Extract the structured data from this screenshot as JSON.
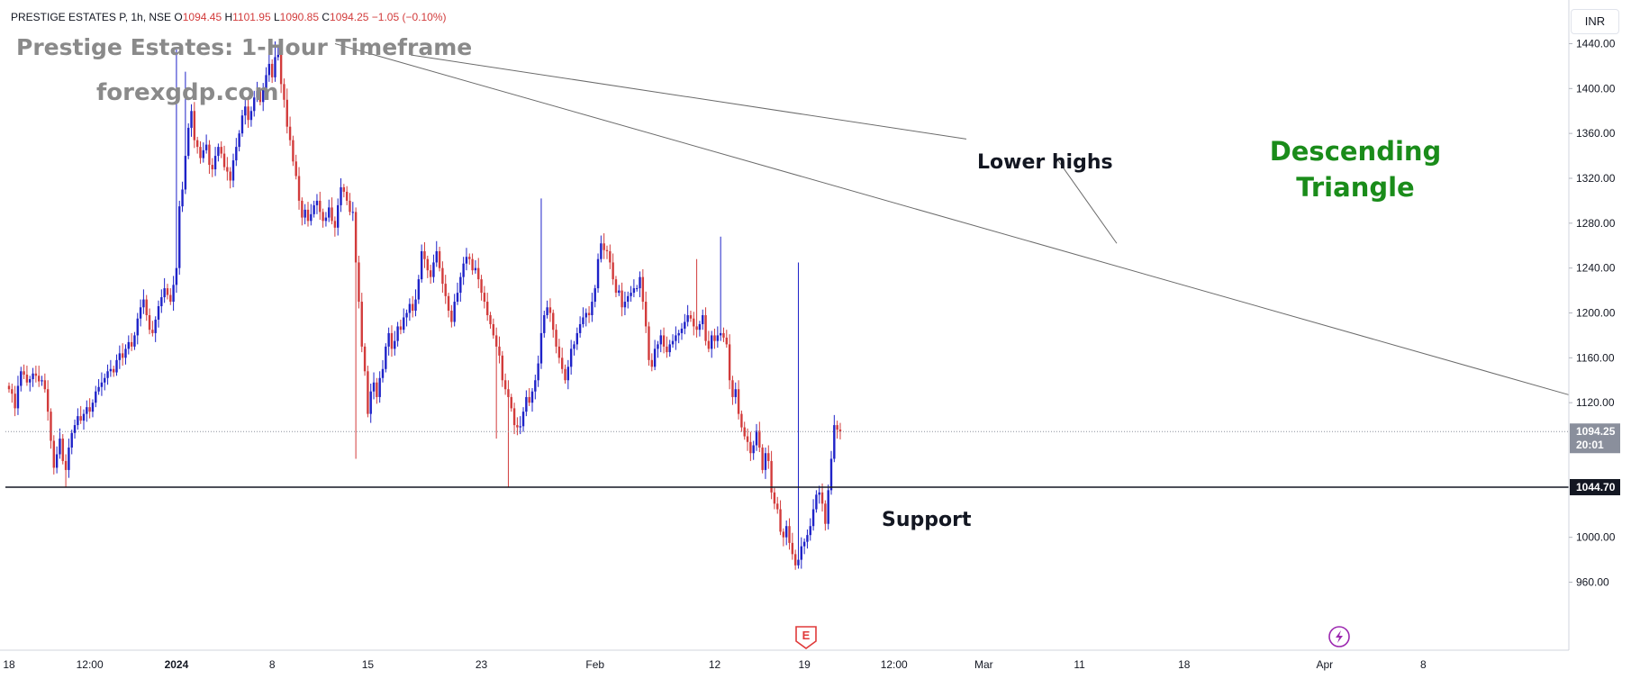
{
  "header": {
    "symbol": "PRESTIGE ESTATES P, 1h, NSE",
    "ohlc": [
      {
        "label": "O",
        "value": "1094.45"
      },
      {
        "label": "H",
        "value": "1101.95"
      },
      {
        "label": "L",
        "value": "1090.85"
      },
      {
        "label": "C",
        "value": "1094.25"
      }
    ],
    "change": "−1.05 (−0.10%)"
  },
  "title": "Prestige Estates: 1-Hour Timeframe",
  "watermark": "forexgdp.com",
  "annotations": {
    "pattern": "Descending Triangle",
    "lower_highs": "Lower highs",
    "support": "Support"
  },
  "price_scale": {
    "currency": "INR",
    "last_price": "1094.25",
    "countdown": "20:01",
    "support_label": "1044.70"
  },
  "colors": {
    "up": "#1e22c8",
    "down": "#d23b3b",
    "pattern_text": "#1a8c1a",
    "trendline": "#6b6b6b",
    "support_line": "#131722"
  },
  "chart_data": {
    "type": "line",
    "title": "Prestige Estates: 1-Hour Timeframe",
    "xlabel": "",
    "ylabel": "",
    "ylim": [
      940,
      1460
    ],
    "y_ticks": [
      960,
      1000,
      1040,
      1080,
      1120,
      1160,
      1200,
      1240,
      1280,
      1320,
      1360,
      1400,
      1440
    ],
    "y_tick_labels": [
      "960.00",
      "1000.00",
      "1120.00",
      "1160.00",
      "1200.00",
      "1240.00",
      "1280.00",
      "1320.00",
      "1360.00",
      "1400.00",
      "1440.00"
    ],
    "x_tick_labels": [
      "18",
      "12:00",
      "2024",
      "8",
      "15",
      "23",
      "Feb",
      "12",
      "19",
      "12:00",
      "Mar",
      "11",
      "18",
      "Apr",
      "8"
    ],
    "x_tick_index": [
      0,
      27,
      56,
      88,
      120,
      158,
      196,
      236,
      266,
      296,
      326,
      358,
      393,
      440,
      473
    ],
    "grid": false,
    "support_level": 1044.7,
    "last_price": 1094.25,
    "series": [
      {
        "values": [
          1132,
          1128,
          1115,
          1135,
          1148,
          1145,
          1138,
          1141,
          1146,
          1144,
          1139,
          1140,
          1132,
          1112,
          1086,
          1062,
          1074,
          1088,
          1068,
          1060,
          1080,
          1093,
          1100,
          1108,
          1104,
          1110,
          1116,
          1112,
          1120,
          1130,
          1134,
          1138,
          1142,
          1148,
          1150,
          1147,
          1158,
          1164,
          1160,
          1168,
          1174,
          1170,
          1180,
          1195,
          1205,
          1212,
          1198,
          1185,
          1182,
          1194,
          1206,
          1214,
          1222,
          1216,
          1210,
          1225,
          1240,
          1295,
          1310,
          1340,
          1365,
          1380,
          1354,
          1348,
          1338,
          1345,
          1350,
          1332,
          1328,
          1340,
          1348,
          1342,
          1330,
          1326,
          1318,
          1336,
          1348,
          1360,
          1376,
          1384,
          1372,
          1380,
          1392,
          1398,
          1388,
          1400,
          1412,
          1422,
          1410,
          1428,
          1430,
          1404,
          1390,
          1366,
          1354,
          1335,
          1322,
          1300,
          1285,
          1292,
          1282,
          1288,
          1296,
          1300,
          1290,
          1282,
          1285,
          1294,
          1282,
          1276,
          1296,
          1312,
          1308,
          1300,
          1290,
          1290,
          1245,
          1210,
          1170,
          1148,
          1110,
          1130,
          1138,
          1125,
          1142,
          1150,
          1170,
          1182,
          1168,
          1175,
          1188,
          1185,
          1196,
          1200,
          1208,
          1202,
          1212,
          1230,
          1255,
          1248,
          1238,
          1232,
          1245,
          1255,
          1240,
          1226,
          1215,
          1202,
          1192,
          1210,
          1218,
          1232,
          1244,
          1250,
          1248,
          1238,
          1240,
          1230,
          1218,
          1210,
          1198,
          1190,
          1180,
          1170,
          1162,
          1140,
          1132,
          1125,
          1115,
          1100,
          1098,
          1099,
          1112,
          1125,
          1120,
          1130,
          1140,
          1155,
          1182,
          1198,
          1205,
          1200,
          1185,
          1170,
          1160,
          1150,
          1140,
          1152,
          1168,
          1172,
          1182,
          1190,
          1196,
          1200,
          1198,
          1210,
          1222,
          1248,
          1262,
          1256,
          1255,
          1245,
          1230,
          1218,
          1220,
          1205,
          1210,
          1215,
          1218,
          1222,
          1222,
          1232,
          1210,
          1188,
          1158,
          1152,
          1168,
          1172,
          1180,
          1170,
          1165,
          1172,
          1175,
          1180,
          1182,
          1186,
          1192,
          1198,
          1195,
          1188,
          1185,
          1190,
          1198,
          1175,
          1168,
          1180,
          1175,
          1180,
          1182,
          1178,
          1172,
          1140,
          1125,
          1132,
          1110,
          1098,
          1090,
          1085,
          1075,
          1082,
          1095,
          1080,
          1060,
          1075,
          1068,
          1040,
          1030,
          1025,
          1005,
          1000,
          1010,
          995,
          985,
          975,
          980,
          992,
          996,
          1002,
          1010,
          1025,
          1038,
          1040,
          1030,
          1012,
          1042,
          1070,
          1100,
          1096,
          1094.25
        ]
      }
    ]
  }
}
